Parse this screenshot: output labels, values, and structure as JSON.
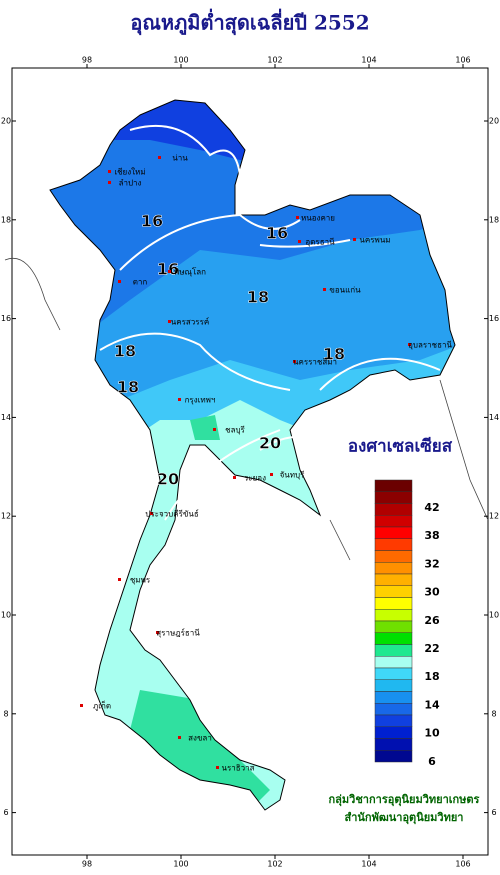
{
  "title": "อุณหภูมิต่ำสุดเฉลี่ยปี 2552",
  "axes": {
    "lon_ticks": [
      98,
      100,
      102,
      104,
      106
    ],
    "lat_ticks": [
      6,
      8,
      10,
      12,
      14,
      16,
      18,
      20
    ]
  },
  "legend": {
    "title": "องศาเซลเซียส",
    "labels": [
      "42",
      "38",
      "32",
      "30",
      "26",
      "22",
      "18",
      "14",
      "10",
      "6"
    ],
    "colors": [
      "#6b0000",
      "#8b0000",
      "#b00000",
      "#d00000",
      "#ff0000",
      "#ff3a00",
      "#ff6a00",
      "#ff9000",
      "#ffb000",
      "#ffd000",
      "#ffff00",
      "#c8ff00",
      "#6fe000",
      "#00e000",
      "#20e890",
      "#a8fff0",
      "#40d8f8",
      "#20b8f0",
      "#1890f0",
      "#1868e8",
      "#1040e0",
      "#0020d0",
      "#0010b0",
      "#000890"
    ]
  },
  "contours": [
    "16",
    "16",
    "18",
    "18",
    "16",
    "18",
    "18",
    "20",
    "20"
  ],
  "places": [
    "เชียงใหม่",
    "ลำปาง",
    "น่าน",
    "หนองคาย",
    "อุดรธานี",
    "นครพนม",
    "ขอนแก่น",
    "พิษณุโลก",
    "ตาก",
    "นครสวรรค์",
    "นครราชสีมา",
    "อุบลราชธานี",
    "กรุงเทพฯ",
    "ชลบุรี",
    "ระยอง",
    "จันทบุรี",
    "ประจวบคีรีขันธ์",
    "ชุมพร",
    "สุราษฎร์ธานี",
    "ภูเก็ต",
    "สงขลา",
    "นราธิวาส"
  ],
  "credit": [
    "กลุ่มวิชาการอุตุนิยมวิทยาเกษตร",
    "สำนักพัฒนาอุตุนิยมวิทยา"
  ]
}
